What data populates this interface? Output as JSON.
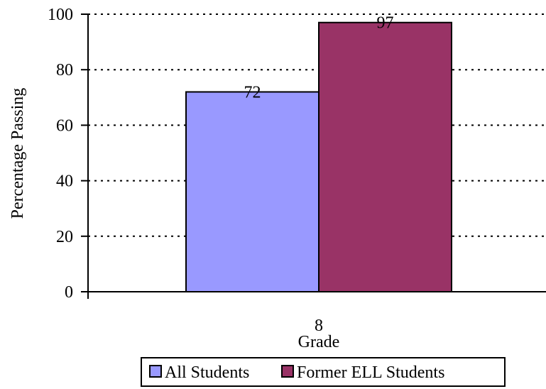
{
  "chart_data": {
    "type": "bar",
    "title": "",
    "xlabel": "Grade",
    "ylabel": "Percentage Passing",
    "categories": [
      "8"
    ],
    "series": [
      {
        "name": "All Students",
        "values": [
          72
        ],
        "color": "#9999ff"
      },
      {
        "name": "Former ELL Students",
        "values": [
          97
        ],
        "color": "#993366"
      }
    ],
    "ylim": [
      0,
      100
    ],
    "yticks": [
      0,
      20,
      40,
      60,
      80,
      100
    ],
    "grid": "dotted-horizontal",
    "legend_position": "bottom",
    "data_labels": true
  }
}
